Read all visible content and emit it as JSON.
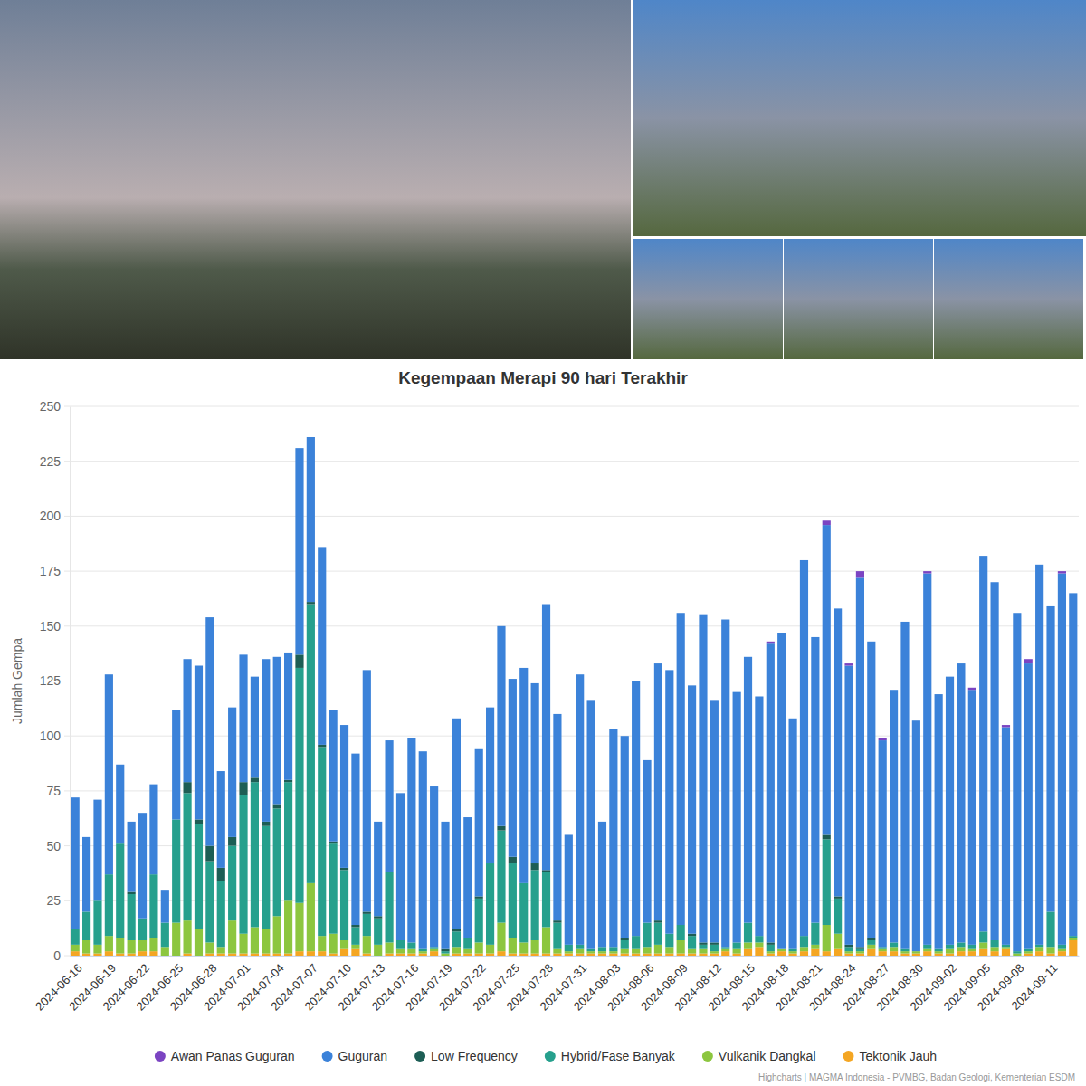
{
  "chart_data": {
    "type": "bar",
    "stacked": true,
    "grid": true,
    "legend": "bottom",
    "title": "Kegempaan Merapi 90 hari Terakhir",
    "y_label": "Jumlah Gempa",
    "credits": "Highcharts | MAGMA Indonesia - PVMBG, Badan Geologi, Kementerian ESDM",
    "ylim": [
      0,
      250
    ],
    "yticks": [
      0,
      25,
      50,
      75,
      100,
      125,
      150,
      175,
      200,
      225,
      250
    ],
    "categories": [
      "2024-06-16",
      null,
      null,
      "2024-06-19",
      null,
      null,
      "2024-06-22",
      null,
      null,
      "2024-06-25",
      null,
      null,
      "2024-06-28",
      null,
      null,
      "2024-07-01",
      null,
      null,
      "2024-07-04",
      null,
      null,
      "2024-07-07",
      null,
      null,
      "2024-07-10",
      null,
      null,
      "2024-07-13",
      null,
      null,
      "2024-07-16",
      null,
      null,
      "2024-07-19",
      null,
      null,
      "2024-07-22",
      null,
      null,
      "2024-07-25",
      null,
      null,
      "2024-07-28",
      null,
      null,
      "2024-07-31",
      null,
      null,
      "2024-08-03",
      null,
      null,
      "2024-08-06",
      null,
      null,
      "2024-08-09",
      null,
      null,
      "2024-08-12",
      null,
      null,
      "2024-08-15",
      null,
      null,
      "2024-08-18",
      null,
      null,
      "2024-08-21",
      null,
      null,
      "2024-08-24",
      null,
      null,
      "2024-08-27",
      null,
      null,
      "2024-08-30",
      null,
      null,
      "2024-09-02",
      null,
      null,
      "2024-09-05",
      null,
      null,
      "2024-09-08",
      null,
      null,
      "2024-09-11",
      null,
      null
    ],
    "series": [
      {
        "name": "Awan Panas Guguran",
        "color": "#7b44c2",
        "values": [
          0,
          0,
          0,
          0,
          0,
          0,
          0,
          0,
          0,
          0,
          0,
          0,
          0,
          0,
          0,
          0,
          0,
          0,
          0,
          0,
          0,
          0,
          0,
          0,
          0,
          0,
          0,
          0,
          0,
          0,
          0,
          0,
          0,
          0,
          0,
          0,
          0,
          0,
          0,
          0,
          0,
          0,
          0,
          0,
          0,
          0,
          0,
          0,
          0,
          0,
          0,
          0,
          0,
          0,
          0,
          0,
          0,
          0,
          0,
          0,
          0,
          0,
          1,
          0,
          0,
          0,
          0,
          2,
          0,
          1,
          3,
          0,
          1,
          0,
          0,
          0,
          1,
          0,
          0,
          0,
          1,
          0,
          0,
          1,
          0,
          2,
          0,
          0,
          1,
          0
        ]
      },
      {
        "name": "Guguran",
        "color": "#3b82d9",
        "values": [
          60,
          34,
          46,
          91,
          36,
          32,
          48,
          41,
          15,
          50,
          56,
          70,
          104,
          44,
          59,
          58,
          46,
          74,
          67,
          58,
          94,
          75,
          90,
          60,
          65,
          78,
          110,
          43,
          60,
          67,
          93,
          90,
          73,
          58,
          96,
          55,
          67,
          71,
          91,
          81,
          98,
          82,
          121,
          94,
          50,
          123,
          113,
          57,
          99,
          92,
          116,
          74,
          117,
          120,
          142,
          113,
          149,
          110,
          149,
          114,
          121,
          109,
          136,
          144,
          105,
          171,
          130,
          141,
          131,
          127,
          168,
          135,
          94,
          115,
          149,
          105,
          169,
          116,
          122,
          127,
          116,
          171,
          163,
          99,
          154,
          130,
          173,
          139,
          169,
          156
        ]
      },
      {
        "name": "Low Frequency",
        "color": "#1d5e55",
        "values": [
          0,
          0,
          0,
          0,
          0,
          1,
          0,
          0,
          0,
          0,
          5,
          2,
          7,
          6,
          4,
          6,
          2,
          2,
          2,
          1,
          6,
          1,
          1,
          1,
          1,
          1,
          1,
          1,
          0,
          0,
          0,
          0,
          0,
          1,
          1,
          0,
          1,
          0,
          2,
          3,
          0,
          3,
          1,
          1,
          0,
          0,
          0,
          0,
          0,
          1,
          0,
          0,
          1,
          0,
          0,
          1,
          1,
          1,
          0,
          0,
          0,
          0,
          1,
          0,
          0,
          0,
          0,
          2,
          1,
          1,
          1,
          1,
          0,
          0,
          0,
          0,
          0,
          0,
          0,
          0,
          0,
          0,
          0,
          0,
          0,
          0,
          0,
          0,
          0,
          0
        ]
      },
      {
        "name": "Hybrid/Fase Banyak",
        "color": "#26a08d",
        "values": [
          7,
          13,
          20,
          28,
          43,
          21,
          10,
          29,
          11,
          47,
          58,
          48,
          37,
          30,
          34,
          63,
          66,
          47,
          49,
          54,
          107,
          127,
          86,
          41,
          32,
          8,
          10,
          12,
          32,
          4,
          3,
          1,
          1,
          1,
          7,
          5,
          20,
          37,
          42,
          34,
          27,
          32,
          25,
          12,
          3,
          2,
          1,
          2,
          2,
          4,
          6,
          11,
          10,
          6,
          7,
          6,
          2,
          3,
          1,
          3,
          9,
          3,
          3,
          0,
          1,
          5,
          10,
          39,
          16,
          2,
          1,
          2,
          1,
          2,
          1,
          0,
          2,
          1,
          2,
          2,
          2,
          5,
          3,
          1,
          1,
          1,
          1,
          16,
          2,
          1
        ]
      },
      {
        "name": "Vulkanik Dangkal",
        "color": "#8cc63f",
        "values": [
          3,
          6,
          4,
          7,
          7,
          6,
          5,
          6,
          4,
          15,
          15,
          12,
          5,
          3,
          15,
          9,
          12,
          11,
          17,
          24,
          22,
          31,
          7,
          9,
          4,
          2,
          8,
          5,
          5,
          2,
          2,
          1,
          1,
          1,
          3,
          2,
          5,
          4,
          13,
          7,
          5,
          6,
          12,
          2,
          1,
          2,
          1,
          1,
          1,
          2,
          2,
          3,
          4,
          3,
          6,
          2,
          2,
          1,
          1,
          2,
          3,
          2,
          1,
          1,
          1,
          2,
          2,
          12,
          7,
          1,
          1,
          2,
          1,
          2,
          1,
          1,
          1,
          1,
          2,
          2,
          1,
          3,
          2,
          1,
          1,
          1,
          2,
          3,
          1,
          1
        ]
      },
      {
        "name": "Tektonik Jauh",
        "color": "#f4a623",
        "values": [
          2,
          1,
          1,
          2,
          1,
          1,
          2,
          2,
          0,
          0,
          1,
          0,
          1,
          1,
          1,
          1,
          1,
          1,
          1,
          1,
          2,
          2,
          2,
          1,
          3,
          3,
          1,
          0,
          1,
          1,
          1,
          1,
          2,
          0,
          1,
          1,
          1,
          1,
          2,
          1,
          1,
          1,
          1,
          1,
          1,
          1,
          1,
          1,
          1,
          1,
          1,
          1,
          1,
          1,
          1,
          1,
          1,
          1,
          2,
          1,
          3,
          4,
          1,
          2,
          1,
          2,
          3,
          2,
          3,
          1,
          1,
          3,
          2,
          2,
          1,
          1,
          2,
          1,
          1,
          2,
          2,
          3,
          2,
          3,
          0,
          1,
          2,
          1,
          2,
          7
        ]
      }
    ]
  }
}
